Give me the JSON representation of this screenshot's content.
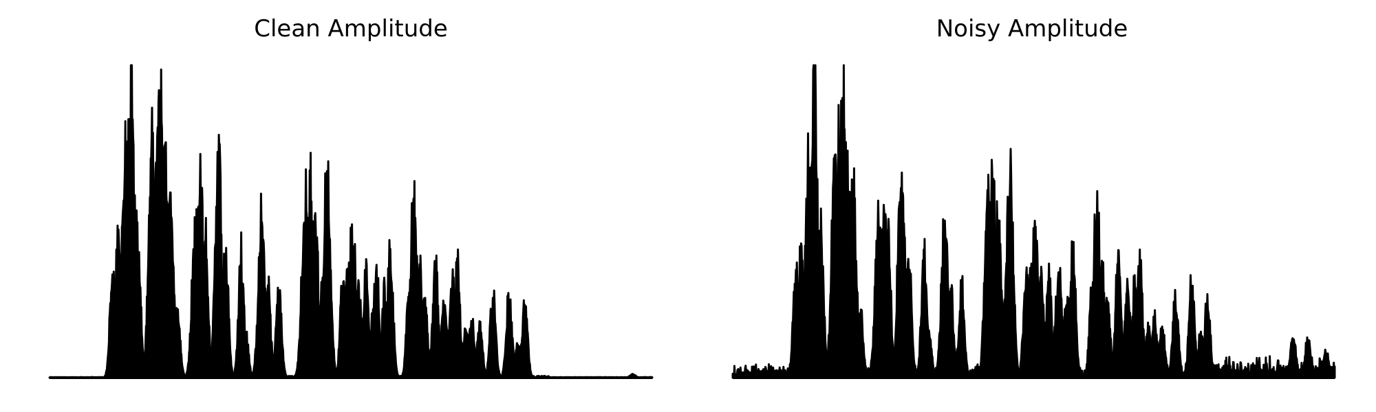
{
  "chart_data": [
    {
      "type": "area",
      "title": "Clean Amplitude",
      "xlabel": "",
      "ylabel": "",
      "axes_visible": false,
      "grid": false,
      "color": "#000000",
      "xlim": [
        0,
        1
      ],
      "ylim": [
        0,
        1
      ],
      "peaks": [
        {
          "x": 0.105,
          "h": 0.37
        },
        {
          "x": 0.114,
          "h": 0.48
        },
        {
          "x": 0.126,
          "h": 0.8
        },
        {
          "x": 0.135,
          "h": 1.0
        },
        {
          "x": 0.145,
          "h": 0.52
        },
        {
          "x": 0.17,
          "h": 0.8
        },
        {
          "x": 0.178,
          "h": 0.86
        },
        {
          "x": 0.184,
          "h": 0.96
        },
        {
          "x": 0.192,
          "h": 0.7
        },
        {
          "x": 0.2,
          "h": 0.6
        },
        {
          "x": 0.212,
          "h": 0.22
        },
        {
          "x": 0.242,
          "h": 0.53
        },
        {
          "x": 0.25,
          "h": 0.65
        },
        {
          "x": 0.258,
          "h": 0.5
        },
        {
          "x": 0.28,
          "h": 0.76
        },
        {
          "x": 0.292,
          "h": 0.44
        },
        {
          "x": 0.318,
          "h": 0.42
        },
        {
          "x": 0.325,
          "h": 0.16
        },
        {
          "x": 0.352,
          "h": 0.54
        },
        {
          "x": 0.362,
          "h": 0.32
        },
        {
          "x": 0.38,
          "h": 0.31
        },
        {
          "x": 0.424,
          "h": 0.64
        },
        {
          "x": 0.432,
          "h": 0.67
        },
        {
          "x": 0.44,
          "h": 0.53
        },
        {
          "x": 0.452,
          "h": 0.32
        },
        {
          "x": 0.46,
          "h": 0.74
        },
        {
          "x": 0.487,
          "h": 0.36
        },
        {
          "x": 0.495,
          "h": 0.42
        },
        {
          "x": 0.502,
          "h": 0.54
        },
        {
          "x": 0.512,
          "h": 0.34
        },
        {
          "x": 0.525,
          "h": 0.37
        },
        {
          "x": 0.538,
          "h": 0.26
        },
        {
          "x": 0.542,
          "h": 0.38
        },
        {
          "x": 0.555,
          "h": 0.3
        },
        {
          "x": 0.565,
          "h": 0.44
        },
        {
          "x": 0.597,
          "h": 0.33
        },
        {
          "x": 0.604,
          "h": 0.6
        },
        {
          "x": 0.613,
          "h": 0.4
        },
        {
          "x": 0.622,
          "h": 0.28
        },
        {
          "x": 0.64,
          "h": 0.38
        },
        {
          "x": 0.655,
          "h": 0.3
        },
        {
          "x": 0.668,
          "h": 0.35
        },
        {
          "x": 0.676,
          "h": 0.4
        },
        {
          "x": 0.69,
          "h": 0.18
        },
        {
          "x": 0.7,
          "h": 0.2
        },
        {
          "x": 0.713,
          "h": 0.18
        },
        {
          "x": 0.735,
          "h": 0.29
        },
        {
          "x": 0.762,
          "h": 0.29
        },
        {
          "x": 0.777,
          "h": 0.12
        },
        {
          "x": 0.788,
          "h": 0.25
        },
        {
          "x": 0.967,
          "h": 0.012
        }
      ],
      "noise_floor": 0.003
    },
    {
      "type": "area",
      "title": "Noisy Amplitude",
      "xlabel": "",
      "ylabel": "",
      "axes_visible": false,
      "grid": false,
      "color": "#000000",
      "xlim": [
        0,
        1
      ],
      "ylim": [
        0,
        1
      ],
      "peaks": [
        {
          "x": 0.105,
          "h": 0.38
        },
        {
          "x": 0.114,
          "h": 0.49
        },
        {
          "x": 0.126,
          "h": 0.8
        },
        {
          "x": 0.135,
          "h": 1.0
        },
        {
          "x": 0.145,
          "h": 0.53
        },
        {
          "x": 0.17,
          "h": 0.8
        },
        {
          "x": 0.178,
          "h": 0.86
        },
        {
          "x": 0.184,
          "h": 0.95
        },
        {
          "x": 0.192,
          "h": 0.7
        },
        {
          "x": 0.2,
          "h": 0.61
        },
        {
          "x": 0.212,
          "h": 0.23
        },
        {
          "x": 0.242,
          "h": 0.54
        },
        {
          "x": 0.25,
          "h": 0.64
        },
        {
          "x": 0.258,
          "h": 0.5
        },
        {
          "x": 0.28,
          "h": 0.75
        },
        {
          "x": 0.292,
          "h": 0.45
        },
        {
          "x": 0.318,
          "h": 0.43
        },
        {
          "x": 0.325,
          "h": 0.17
        },
        {
          "x": 0.352,
          "h": 0.53
        },
        {
          "x": 0.362,
          "h": 0.31
        },
        {
          "x": 0.38,
          "h": 0.31
        },
        {
          "x": 0.424,
          "h": 0.64
        },
        {
          "x": 0.432,
          "h": 0.67
        },
        {
          "x": 0.44,
          "h": 0.53
        },
        {
          "x": 0.452,
          "h": 0.3
        },
        {
          "x": 0.46,
          "h": 0.74
        },
        {
          "x": 0.487,
          "h": 0.36
        },
        {
          "x": 0.495,
          "h": 0.42
        },
        {
          "x": 0.502,
          "h": 0.54
        },
        {
          "x": 0.512,
          "h": 0.34
        },
        {
          "x": 0.525,
          "h": 0.37
        },
        {
          "x": 0.538,
          "h": 0.26
        },
        {
          "x": 0.542,
          "h": 0.38
        },
        {
          "x": 0.555,
          "h": 0.3
        },
        {
          "x": 0.565,
          "h": 0.44
        },
        {
          "x": 0.597,
          "h": 0.33
        },
        {
          "x": 0.604,
          "h": 0.6
        },
        {
          "x": 0.613,
          "h": 0.4
        },
        {
          "x": 0.622,
          "h": 0.28
        },
        {
          "x": 0.64,
          "h": 0.4
        },
        {
          "x": 0.655,
          "h": 0.32
        },
        {
          "x": 0.668,
          "h": 0.35
        },
        {
          "x": 0.676,
          "h": 0.4
        },
        {
          "x": 0.69,
          "h": 0.18
        },
        {
          "x": 0.7,
          "h": 0.2
        },
        {
          "x": 0.713,
          "h": 0.18
        },
        {
          "x": 0.735,
          "h": 0.29
        },
        {
          "x": 0.762,
          "h": 0.34
        },
        {
          "x": 0.777,
          "h": 0.16
        },
        {
          "x": 0.788,
          "h": 0.27
        },
        {
          "x": 0.93,
          "h": 0.15
        },
        {
          "x": 0.955,
          "h": 0.14
        },
        {
          "x": 0.985,
          "h": 0.09
        }
      ],
      "noise_floor": 0.04
    }
  ]
}
